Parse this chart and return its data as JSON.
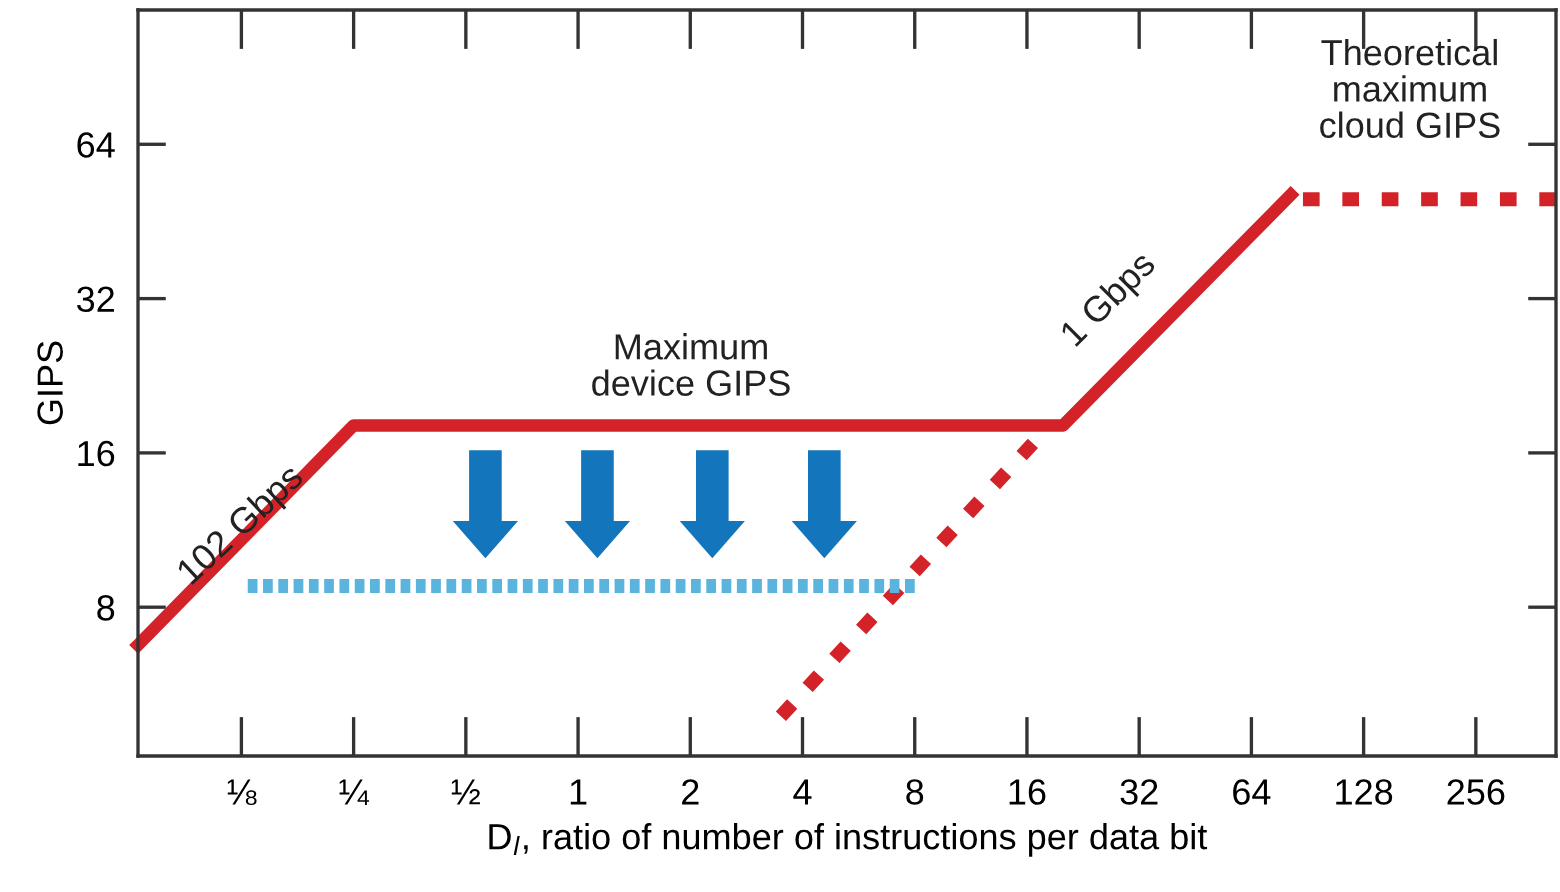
{
  "chart_data": {
    "type": "line",
    "log": "xy",
    "grid": false,
    "marker": "none",
    "xlabel": "D$_{l}$, ratio of number of instructions per data bit",
    "ylabel": "GIPS",
    "xlim": [
      0.066,
      420
    ],
    "ylim": [
      4.1,
      117
    ],
    "xticks": [
      {
        "value": 0.125,
        "label": "⅛"
      },
      {
        "value": 0.25,
        "label": "¼"
      },
      {
        "value": 0.5,
        "label": "½"
      },
      1,
      2,
      4,
      8,
      16,
      32,
      64,
      128,
      256
    ],
    "yticks": [
      8,
      16,
      32,
      64
    ],
    "series": [
      {
        "color": "#d42229",
        "line_style": "solid",
        "x": [
          0.066,
          0.25,
          20,
          81.6
        ],
        "values": [
          6.75,
          18.1,
          18.1,
          51
        ]
      },
      {
        "color": "#d42229",
        "line_style": "dashed",
        "x": [
          88,
          420
        ],
        "values": [
          50,
          50
        ]
      },
      {
        "color": "#d42229",
        "line_style": "dashed",
        "x": [
          16.6,
          3.5
        ],
        "values": [
          16.7,
          4.9
        ]
      },
      {
        "color": "#5ab4dd",
        "line_style": "dotted",
        "x": [
          0.13,
          8
        ],
        "values": [
          8.8,
          8.8
        ]
      }
    ],
    "annotations": [
      {
        "text": "102 Gbps",
        "x": 0.125,
        "y": 11.5
      },
      "Maximum\ndevice GIPS",
      "1 Gbps",
      "Theoretical\nmaximum\ncloud GIPS"
    ]
  }
}
